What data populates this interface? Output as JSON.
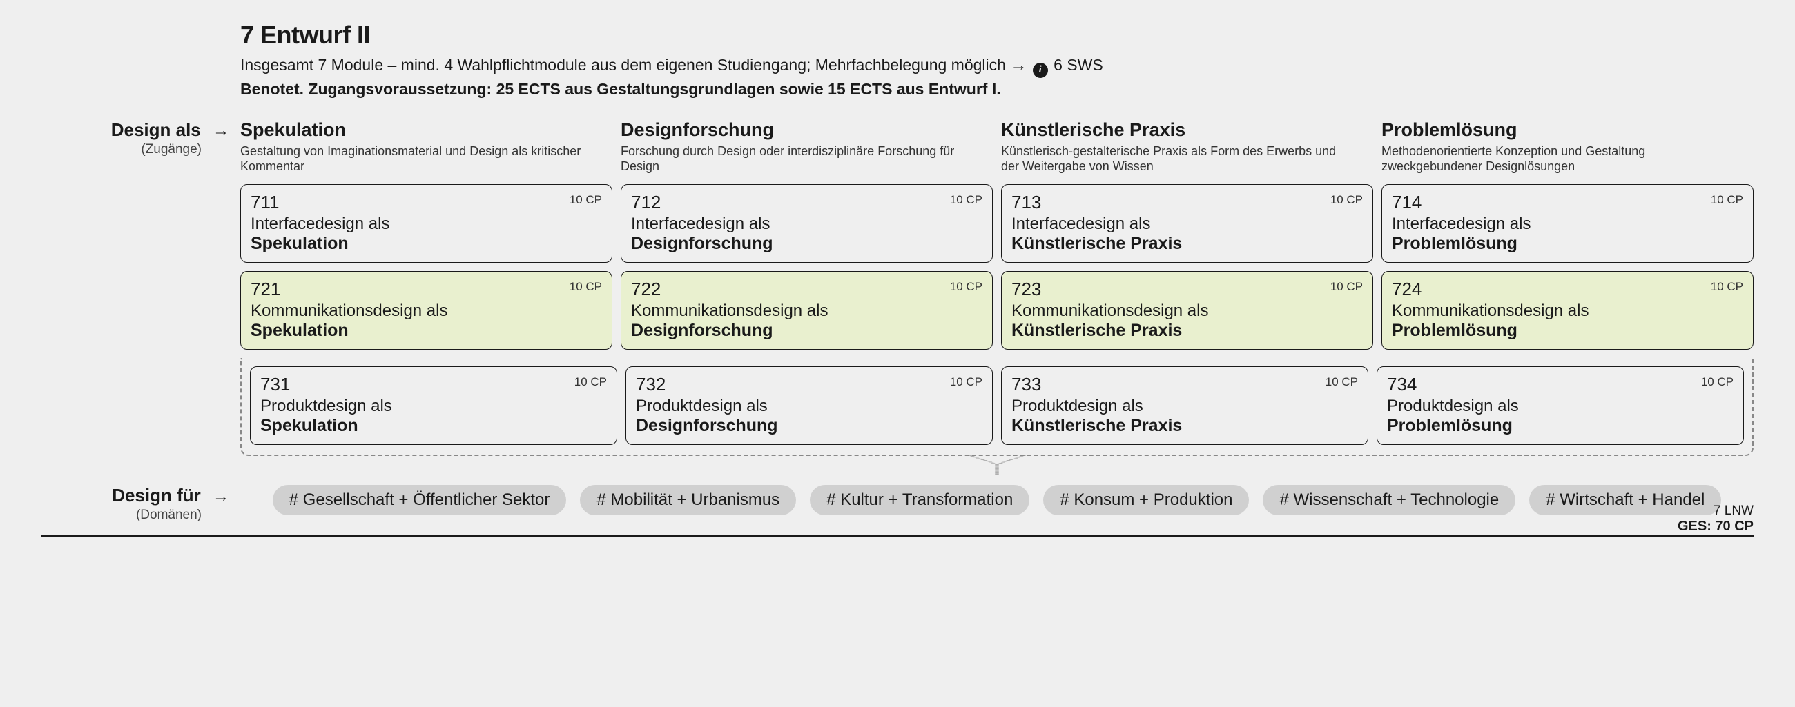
{
  "background_color": "#efefef",
  "text_color": "#1a1a1a",
  "highlight_bg": "#e9f0cf",
  "tag_bg": "#d0d0d0",
  "border_color": "#1a1a1a",
  "dash_color": "#888888",
  "header": {
    "title": "7 Entwurf II",
    "subtitle_pre": "Insgesamt 7 Module – mind. 4 Wahlpflichtmodule aus dem eigenen Studiengang; Mehrfachbelegung möglich ",
    "arrow": "→",
    "sws": "6 SWS",
    "subtitle_bold": "Benotet. Zugangsvoraussetzung: 25 ECTS aus Gestaltungsgrundlagen sowie 15 ECTS aus Entwurf I."
  },
  "side_top": {
    "main": "Design als",
    "sub": "(Zugänge)"
  },
  "side_bottom": {
    "main": "Design für",
    "sub": "(Domänen)"
  },
  "columns": [
    {
      "title": "Spekulation",
      "desc": "Gestaltung von Imaginations­material und Design als kritischer Kommentar"
    },
    {
      "title": "Designforschung",
      "desc": "Forschung durch Design oder interdisziplinäre Forschung für Design"
    },
    {
      "title": "Künstlerische Praxis",
      "desc": "Künstlerisch-gestalterische Praxis als Form des Erwerbs und der Weitergabe von Wissen"
    },
    {
      "title": "Problemlösung",
      "desc": "Methodenorientierte Konzeption und Gestaltung zweckgebundener Designlösungen"
    }
  ],
  "cp_label": "10 CP",
  "rows": [
    {
      "highlight": false,
      "prefix": "Interfacedesign als",
      "cells": [
        {
          "code": "711",
          "bold": "Spekulation"
        },
        {
          "code": "712",
          "bold": "Designforschung"
        },
        {
          "code": "713",
          "bold": "Künstlerische Praxis"
        },
        {
          "code": "714",
          "bold": "Problemlösung"
        }
      ]
    },
    {
      "highlight": true,
      "prefix": "Kommunikationsdesign als",
      "cells": [
        {
          "code": "721",
          "bold": "Spekulation"
        },
        {
          "code": "722",
          "bold": "Designforschung"
        },
        {
          "code": "723",
          "bold": "Künstlerische Praxis"
        },
        {
          "code": "724",
          "bold": "Problemlösung"
        }
      ]
    },
    {
      "highlight": false,
      "prefix": "Produktdesign als",
      "cells": [
        {
          "code": "731",
          "bold": "Spekulation"
        },
        {
          "code": "732",
          "bold": "Designforschung"
        },
        {
          "code": "733",
          "bold": "Künstlerische Praxis"
        },
        {
          "code": "734",
          "bold": "Problemlösung"
        }
      ]
    }
  ],
  "tags": [
    "# Gesellschaft + Öffentlicher Sektor",
    "# Mobilität + Urbanismus",
    "# Kultur + Transformation",
    "# Konsum + Produktion",
    "# Wissenschaft + Technologie",
    "# Wirtschaft + Handel"
  ],
  "footer": {
    "lnw": "7 LNW",
    "ges": "GES: 70 CP"
  }
}
